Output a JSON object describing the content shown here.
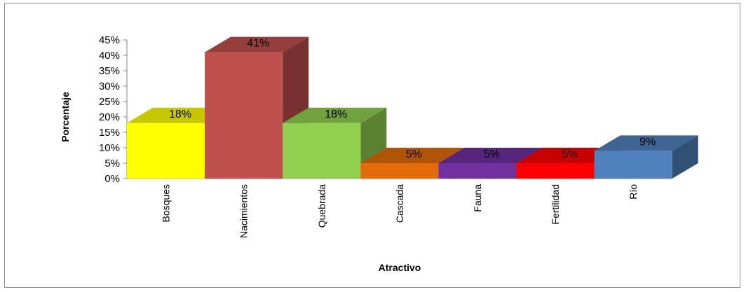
{
  "chart_data": {
    "type": "bar",
    "title": "",
    "xlabel": "Atractivo",
    "ylabel": "Porcentaje",
    "ylim": [
      0,
      45
    ],
    "yticks": [
      "0%",
      "5%",
      "10%",
      "15%",
      "20%",
      "25%",
      "30%",
      "35%",
      "40%",
      "45%"
    ],
    "categories": [
      "Bosques",
      "Nacimientos",
      "Quebrada",
      "Cascada",
      "Fauna",
      "Fertilidad",
      "Río"
    ],
    "values": [
      18,
      41,
      18,
      5,
      5,
      5,
      9
    ],
    "data_labels": [
      "18%",
      "41%",
      "18%",
      "5%",
      "5%",
      "5%",
      "9%"
    ],
    "colors": [
      "#ffff00",
      "#c0504d",
      "#92d050",
      "#e36c09",
      "#7030a0",
      "#ff0000",
      "#4f81bd"
    ],
    "style": "3d-column",
    "grid": false,
    "legend": "none"
  }
}
